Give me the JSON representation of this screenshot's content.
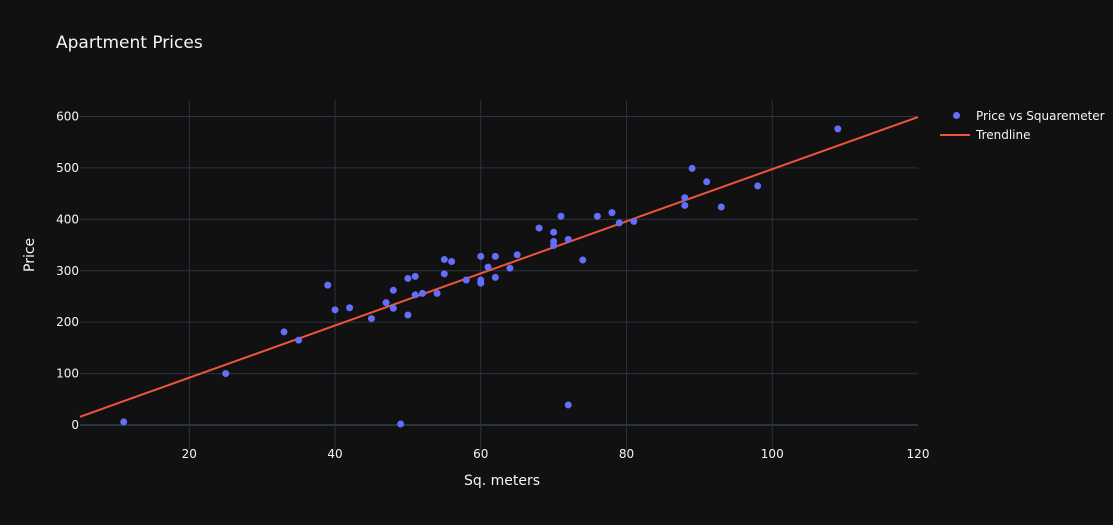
{
  "title": "Apartment Prices",
  "legend": {
    "items": [
      {
        "label": "Price vs Squaremeter",
        "kind": "marker"
      },
      {
        "label": "Trendline",
        "kind": "line"
      }
    ]
  },
  "axes": {
    "xlabel": "Sq. meters",
    "ylabel": "Price",
    "xticks": [
      "20",
      "40",
      "60",
      "80",
      "100",
      "120"
    ],
    "yticks": [
      "0",
      "100",
      "200",
      "300",
      "400",
      "500",
      "600"
    ]
  },
  "colors": {
    "background": "#111111",
    "grid": "#283442",
    "marker": "#636efa",
    "trendline": "#ef553b",
    "text": "#f2f5fa"
  },
  "chart_data": {
    "type": "scatter",
    "title": "Apartment Prices",
    "xlabel": "Sq. meters",
    "ylabel": "Price",
    "xlim": [
      5,
      120
    ],
    "ylim": [
      -10,
      630
    ],
    "grid": true,
    "legend_position": "top-right outside",
    "series": [
      {
        "name": "Price vs Squaremeter",
        "mode": "markers",
        "x": [
          11,
          25,
          33,
          35,
          39,
          40,
          42,
          45,
          47,
          48,
          48,
          49,
          50,
          50,
          51,
          51,
          52,
          54,
          55,
          55,
          56,
          58,
          60,
          60,
          60,
          61,
          62,
          62,
          64,
          65,
          68,
          70,
          70,
          70,
          71,
          72,
          72,
          74,
          76,
          78,
          79,
          81,
          88,
          88,
          89,
          91,
          93,
          98,
          109
        ],
        "y": [
          6,
          100,
          181,
          165,
          272,
          224,
          228,
          207,
          238,
          262,
          227,
          2,
          214,
          285,
          289,
          253,
          256,
          256,
          322,
          294,
          318,
          282,
          328,
          282,
          276,
          307,
          328,
          287,
          305,
          331,
          383,
          375,
          357,
          349,
          406,
          361,
          39,
          321,
          406,
          413,
          393,
          396,
          442,
          427,
          499,
          473,
          424,
          465,
          576
        ]
      },
      {
        "name": "Trendline",
        "mode": "lines",
        "x": [
          5,
          120
        ],
        "y": [
          16,
          599
        ]
      }
    ]
  }
}
